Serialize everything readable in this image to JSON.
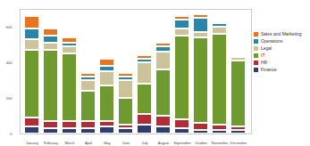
{
  "chart_data": {
    "type": "bar",
    "stacked": true,
    "legend": "right",
    "grid": false,
    "categories": [
      "January",
      "February",
      "March",
      "April",
      "May",
      "June",
      "July",
      "August",
      "September",
      "October",
      "November",
      "December"
    ],
    "ylim": [
      0,
      700
    ],
    "yticks": [
      0,
      200,
      400,
      600
    ],
    "series": [
      {
        "name": "Sales and Marketing",
        "color": "#e9731f",
        "values": [
          70,
          40,
          30,
          20,
          40,
          20,
          20,
          20,
          20,
          20,
          10,
          10
        ]
      },
      {
        "name": "Operations",
        "color": "#2a86a8",
        "values": [
          60,
          40,
          20,
          20,
          30,
          20,
          20,
          30,
          50,
          80,
          20,
          10
        ]
      },
      {
        "name": "Legal",
        "color": "#cdc39a",
        "values": [
          60,
          40,
          40,
          60,
          80,
          100,
          120,
          100,
          40,
          30,
          40,
          20
        ]
      },
      {
        "name": "IT",
        "color": "#6f9a2f",
        "values": [
          380,
          400,
          380,
          170,
          200,
          150,
          170,
          260,
          470,
          480,
          510,
          370
        ]
      },
      {
        "name": "HR",
        "color": "#b22c35",
        "values": [
          50,
          40,
          40,
          40,
          30,
          20,
          60,
          60,
          50,
          40,
          30,
          20
        ]
      },
      {
        "name": "Finance",
        "color": "#2d3e6e",
        "values": [
          40,
          30,
          30,
          30,
          40,
          30,
          50,
          40,
          30,
          20,
          20,
          20
        ]
      }
    ]
  }
}
